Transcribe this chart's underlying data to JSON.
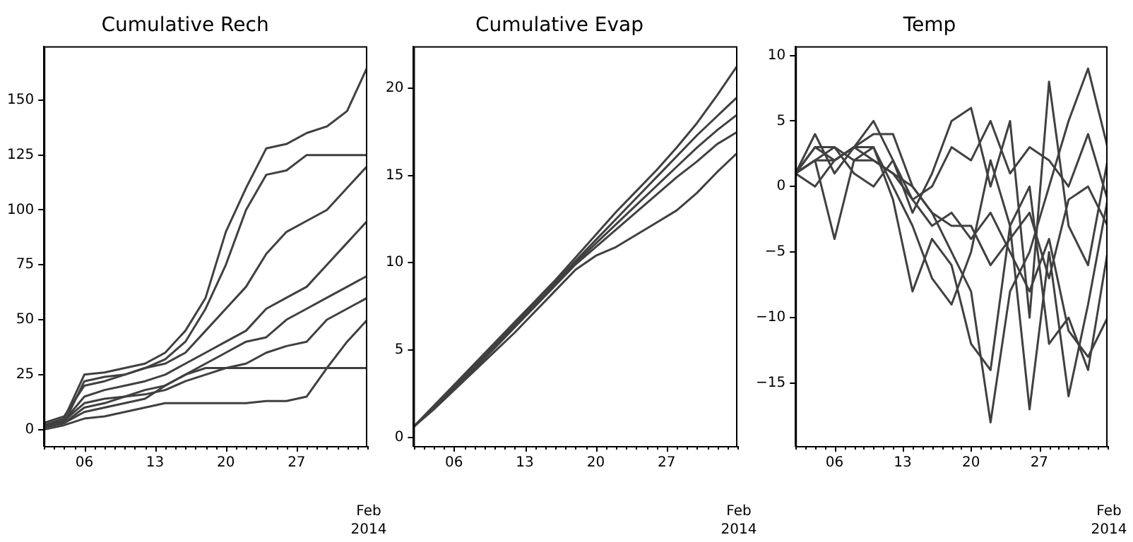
{
  "chart_data": [
    {
      "type": "line",
      "title": "Cumulative Rech",
      "x": [
        "2014-02-02",
        "2014-02-04",
        "2014-02-06",
        "2014-02-08",
        "2014-02-10",
        "2014-02-12",
        "2014-02-14",
        "2014-02-16",
        "2014-02-18",
        "2014-02-20",
        "2014-02-22",
        "2014-02-24",
        "2014-02-26",
        "2014-02-28",
        "2014-03-02",
        "2014-03-04",
        "2014-03-06"
      ],
      "xlim": [
        "2014-02-02",
        "2014-03-06"
      ],
      "xticks": [
        {
          "value": "2014-02-02",
          "label": null
        },
        {
          "value": "2014-02-03",
          "label": null
        },
        {
          "value": "2014-02-04",
          "label": null
        },
        {
          "value": "2014-02-05",
          "label": null
        },
        {
          "value": "2014-02-06",
          "label": "06"
        },
        {
          "value": "2014-02-07",
          "label": null
        },
        {
          "value": "2014-02-08",
          "label": null
        },
        {
          "value": "2014-02-09",
          "label": null
        },
        {
          "value": "2014-02-10",
          "label": null
        },
        {
          "value": "2014-02-11",
          "label": null
        },
        {
          "value": "2014-02-12",
          "label": null
        },
        {
          "value": "2014-02-13",
          "label": "13"
        },
        {
          "value": "2014-02-14",
          "label": null
        },
        {
          "value": "2014-02-15",
          "label": null
        },
        {
          "value": "2014-02-16",
          "label": null
        },
        {
          "value": "2014-02-17",
          "label": null
        },
        {
          "value": "2014-02-18",
          "label": null
        },
        {
          "value": "2014-02-19",
          "label": null
        },
        {
          "value": "2014-02-20",
          "label": "20"
        },
        {
          "value": "2014-02-21",
          "label": null
        },
        {
          "value": "2014-02-22",
          "label": null
        },
        {
          "value": "2014-02-23",
          "label": null
        },
        {
          "value": "2014-02-24",
          "label": null
        },
        {
          "value": "2014-02-25",
          "label": null
        },
        {
          "value": "2014-02-26",
          "label": null
        },
        {
          "value": "2014-02-27",
          "label": "27"
        },
        {
          "value": "2014-02-28",
          "label": null
        },
        {
          "value": "2014-03-01",
          "label": null
        },
        {
          "value": "2014-03-02",
          "label": null
        },
        {
          "value": "2014-03-03",
          "label": null
        },
        {
          "value": "2014-03-04",
          "label": null
        },
        {
          "value": "2014-03-05",
          "label": null
        },
        {
          "value": "2014-03-06",
          "label": null
        }
      ],
      "ylim": [
        -7.5,
        174.5
      ],
      "yticks": [
        0,
        25,
        50,
        75,
        100,
        125,
        150
      ],
      "annotations": [
        "Feb\n2014"
      ],
      "series": [
        {
          "color": "#404040",
          "values": [
            2,
            5,
            25,
            26,
            28,
            30,
            35,
            45,
            60,
            90,
            110,
            128,
            130,
            135,
            138,
            145,
            165
          ]
        },
        {
          "color": "#404040",
          "values": [
            1,
            3,
            22,
            24,
            25,
            28,
            32,
            40,
            55,
            75,
            100,
            116,
            118,
            125,
            125,
            125,
            125
          ]
        },
        {
          "color": "#404040",
          "values": [
            3,
            6,
            20,
            22,
            25,
            28,
            30,
            35,
            45,
            55,
            65,
            80,
            90,
            95,
            100,
            110,
            120
          ]
        },
        {
          "color": "#404040",
          "values": [
            2,
            4,
            15,
            18,
            20,
            22,
            25,
            30,
            35,
            40,
            45,
            55,
            60,
            65,
            75,
            85,
            95
          ]
        },
        {
          "color": "#404040",
          "values": [
            1,
            3,
            10,
            12,
            15,
            18,
            20,
            25,
            30,
            35,
            40,
            42,
            50,
            55,
            60,
            65,
            70
          ]
        },
        {
          "color": "#404040",
          "values": [
            2,
            4,
            12,
            14,
            15,
            16,
            18,
            22,
            25,
            28,
            30,
            35,
            38,
            40,
            50,
            55,
            60
          ]
        },
        {
          "color": "#404040",
          "values": [
            0,
            2,
            5,
            6,
            8,
            10,
            12,
            12,
            12,
            12,
            12,
            13,
            13,
            15,
            28,
            40,
            50
          ]
        },
        {
          "color": "#404040",
          "values": [
            1,
            3,
            8,
            10,
            12,
            14,
            20,
            25,
            28,
            28,
            28,
            28,
            28,
            28,
            28,
            28,
            28
          ]
        }
      ]
    },
    {
      "type": "line",
      "title": "Cumulative Evap",
      "x": [
        "2014-02-02",
        "2014-02-04",
        "2014-02-06",
        "2014-02-08",
        "2014-02-10",
        "2014-02-12",
        "2014-02-14",
        "2014-02-16",
        "2014-02-18",
        "2014-02-20",
        "2014-02-22",
        "2014-02-24",
        "2014-02-26",
        "2014-02-28",
        "2014-03-02",
        "2014-03-04",
        "2014-03-06"
      ],
      "xlim": [
        "2014-02-02",
        "2014-03-06"
      ],
      "xticks": [
        {
          "value": "2014-02-02",
          "label": null
        },
        {
          "value": "2014-02-03",
          "label": null
        },
        {
          "value": "2014-02-04",
          "label": null
        },
        {
          "value": "2014-02-05",
          "label": null
        },
        {
          "value": "2014-02-06",
          "label": "06"
        },
        {
          "value": "2014-02-07",
          "label": null
        },
        {
          "value": "2014-02-08",
          "label": null
        },
        {
          "value": "2014-02-09",
          "label": null
        },
        {
          "value": "2014-02-10",
          "label": null
        },
        {
          "value": "2014-02-11",
          "label": null
        },
        {
          "value": "2014-02-12",
          "label": null
        },
        {
          "value": "2014-02-13",
          "label": "13"
        },
        {
          "value": "2014-02-14",
          "label": null
        },
        {
          "value": "2014-02-15",
          "label": null
        },
        {
          "value": "2014-02-16",
          "label": null
        },
        {
          "value": "2014-02-17",
          "label": null
        },
        {
          "value": "2014-02-18",
          "label": null
        },
        {
          "value": "2014-02-19",
          "label": null
        },
        {
          "value": "2014-02-20",
          "label": "20"
        },
        {
          "value": "2014-02-21",
          "label": null
        },
        {
          "value": "2014-02-22",
          "label": null
        },
        {
          "value": "2014-02-23",
          "label": null
        },
        {
          "value": "2014-02-24",
          "label": null
        },
        {
          "value": "2014-02-25",
          "label": null
        },
        {
          "value": "2014-02-26",
          "label": null
        },
        {
          "value": "2014-02-27",
          "label": "27"
        },
        {
          "value": "2014-02-28",
          "label": null
        },
        {
          "value": "2014-03-01",
          "label": null
        },
        {
          "value": "2014-03-02",
          "label": null
        },
        {
          "value": "2014-03-03",
          "label": null
        },
        {
          "value": "2014-03-04",
          "label": null
        },
        {
          "value": "2014-03-05",
          "label": null
        },
        {
          "value": "2014-03-06",
          "label": null
        }
      ],
      "ylim": [
        -0.5,
        22.4
      ],
      "yticks": [
        0,
        5,
        10,
        15,
        20
      ],
      "annotations": [
        "Feb\n2014"
      ],
      "series": [
        {
          "color": "#404040",
          "values": [
            0.6,
            1.8,
            3.0,
            4.2,
            5.4,
            6.6,
            7.8,
            9.0,
            10.3,
            11.6,
            12.9,
            14.1,
            15.3,
            16.6,
            18.0,
            19.6,
            21.3
          ]
        },
        {
          "color": "#404040",
          "values": [
            0.6,
            1.7,
            2.9,
            4.1,
            5.3,
            6.5,
            7.7,
            8.9,
            10.1,
            11.3,
            12.5,
            13.7,
            14.9,
            16.1,
            17.3,
            18.4,
            19.5
          ]
        },
        {
          "color": "#404040",
          "values": [
            0.6,
            1.7,
            2.8,
            4.0,
            5.2,
            6.4,
            7.6,
            8.8,
            10.0,
            11.1,
            12.2,
            13.3,
            14.4,
            15.5,
            16.6,
            17.6,
            18.5
          ]
        },
        {
          "color": "#404040",
          "values": [
            0.6,
            1.7,
            2.8,
            3.9,
            5.1,
            6.3,
            7.5,
            8.7,
            9.9,
            10.9,
            11.9,
            12.9,
            13.9,
            14.9,
            15.8,
            16.8,
            17.5
          ]
        },
        {
          "color": "#404040",
          "values": [
            0.6,
            1.6,
            2.7,
            3.8,
            4.9,
            6.0,
            7.2,
            8.4,
            9.6,
            10.4,
            10.9,
            11.6,
            12.3,
            13.0,
            14.0,
            15.2,
            16.3
          ]
        }
      ]
    },
    {
      "type": "line",
      "title": "Temp",
      "x": [
        "2014-02-02",
        "2014-02-04",
        "2014-02-06",
        "2014-02-08",
        "2014-02-10",
        "2014-02-12",
        "2014-02-14",
        "2014-02-16",
        "2014-02-18",
        "2014-02-20",
        "2014-02-22",
        "2014-02-24",
        "2014-02-26",
        "2014-02-28",
        "2014-03-02",
        "2014-03-04",
        "2014-03-06"
      ],
      "xlim": [
        "2014-02-02",
        "2014-03-06"
      ],
      "xticks": [
        {
          "value": "2014-02-02",
          "label": null
        },
        {
          "value": "2014-02-03",
          "label": null
        },
        {
          "value": "2014-02-04",
          "label": null
        },
        {
          "value": "2014-02-05",
          "label": null
        },
        {
          "value": "2014-02-06",
          "label": "06"
        },
        {
          "value": "2014-02-07",
          "label": null
        },
        {
          "value": "2014-02-08",
          "label": null
        },
        {
          "value": "2014-02-09",
          "label": null
        },
        {
          "value": "2014-02-10",
          "label": null
        },
        {
          "value": "2014-02-11",
          "label": null
        },
        {
          "value": "2014-02-12",
          "label": null
        },
        {
          "value": "2014-02-13",
          "label": "13"
        },
        {
          "value": "2014-02-14",
          "label": null
        },
        {
          "value": "2014-02-15",
          "label": null
        },
        {
          "value": "2014-02-16",
          "label": null
        },
        {
          "value": "2014-02-17",
          "label": null
        },
        {
          "value": "2014-02-18",
          "label": null
        },
        {
          "value": "2014-02-19",
          "label": null
        },
        {
          "value": "2014-02-20",
          "label": "20"
        },
        {
          "value": "2014-02-21",
          "label": null
        },
        {
          "value": "2014-02-22",
          "label": null
        },
        {
          "value": "2014-02-23",
          "label": null
        },
        {
          "value": "2014-02-24",
          "label": null
        },
        {
          "value": "2014-02-25",
          "label": null
        },
        {
          "value": "2014-02-26",
          "label": null
        },
        {
          "value": "2014-02-27",
          "label": "27"
        },
        {
          "value": "2014-02-28",
          "label": null
        },
        {
          "value": "2014-03-01",
          "label": null
        },
        {
          "value": "2014-03-02",
          "label": null
        },
        {
          "value": "2014-03-03",
          "label": null
        },
        {
          "value": "2014-03-04",
          "label": null
        },
        {
          "value": "2014-03-05",
          "label": null
        },
        {
          "value": "2014-03-06",
          "label": null
        }
      ],
      "ylim": [
        -19.8,
        10.7
      ],
      "yticks": [
        -15,
        -10,
        -5,
        0,
        5,
        10
      ],
      "annotations": [
        "Feb\n2014"
      ],
      "series": [
        {
          "color": "#404040",
          "values": [
            1,
            3,
            2,
            3,
            4,
            4,
            0,
            -2,
            -5,
            -8,
            -18,
            -8,
            -5,
            0,
            5,
            9,
            3
          ]
        },
        {
          "color": "#404040",
          "values": [
            1,
            4,
            1,
            3,
            5,
            2,
            -2,
            1,
            5,
            6,
            0,
            5,
            -10,
            8,
            -3,
            -6,
            2
          ]
        },
        {
          "color": "#404040",
          "values": [
            1,
            2,
            -4,
            2,
            3,
            -1,
            -8,
            -4,
            -6,
            -12,
            -14,
            -3,
            -17,
            -5,
            -16,
            -9,
            -1
          ]
        },
        {
          "color": "#404040",
          "values": [
            1,
            2,
            3,
            2,
            2,
            1,
            -1,
            -3,
            -2,
            -4,
            -2,
            -5,
            -8,
            -4,
            -11,
            -13,
            -10
          ]
        },
        {
          "color": "#404040",
          "values": [
            1,
            0,
            2,
            3,
            3,
            0,
            -3,
            -7,
            -9,
            -5,
            2,
            -3,
            0,
            -12,
            -10,
            -14,
            -5
          ]
        },
        {
          "color": "#404040",
          "values": [
            1,
            3,
            3,
            1,
            0,
            2,
            -1,
            0,
            3,
            2,
            5,
            1,
            3,
            2,
            0,
            4,
            -1
          ]
        },
        {
          "color": "#404040",
          "values": [
            1,
            2,
            2,
            3,
            2,
            1,
            0,
            -2,
            -3,
            -3,
            -6,
            -4,
            -2,
            -7,
            -1,
            0,
            -3
          ]
        }
      ]
    }
  ]
}
